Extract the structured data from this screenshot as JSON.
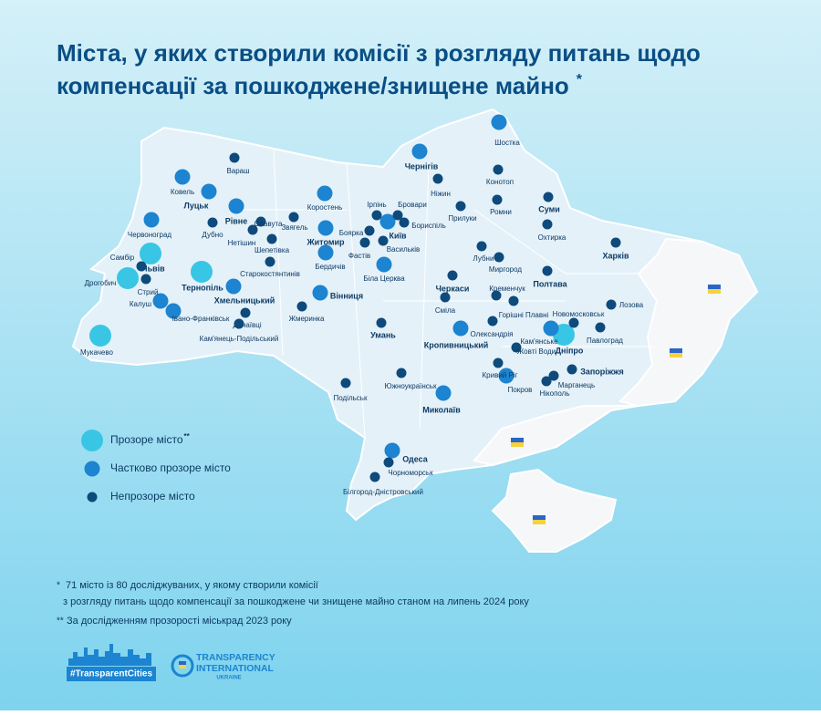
{
  "header": {
    "title_lines": [
      "Міста, у яких створили комісії з розгляду питань щодо",
      "компенсації за пошкоджене/знищене майно"
    ],
    "title_mark": "*"
  },
  "groups": [
    {
      "label": "Прозоре місто",
      "mark": "**",
      "color": "#38c6e4",
      "cities": [
        "Львів",
        "Дрогобич",
        "Тернопіль",
        "Мукачево",
        "Дніпро"
      ]
    },
    {
      "label": "Частково прозоре місто",
      "color": "#1c84d0",
      "cities": [
        "Ковель",
        "Луцьк",
        "Рівне",
        "Червоноград",
        "Калуш",
        "Івано-Франківськ",
        "Хмельницький",
        "Коростень",
        "Житомир",
        "Бердичів",
        "Вінниця",
        "Київ",
        "Біла Церква",
        "Чернігів",
        "Кропивницький",
        "Миколаїв",
        "Одеса",
        "Кам'янське",
        "Покров",
        "Шостка"
      ]
    },
    {
      "label": "Непрозоре місто",
      "color": "#0e4a7b",
      "cities": [
        "Вараш",
        "Дубно",
        "Нетішин",
        "Славута",
        "Шепетівка",
        "Звягель",
        "Старокостянтинів",
        "Самбір",
        "Стрий",
        "Дунаївці",
        "Кам'янець-Подільський",
        "Жмеринка",
        "Ірпінь",
        "Бровари",
        "Бориспіль",
        "Боярка",
        "Фастів",
        "Васильків",
        "Ніжин",
        "Прилуки",
        "Конотоп",
        "Ромни",
        "Суми",
        "Охтирка",
        "Харків",
        "Лубни",
        "Миргород",
        "Полтава",
        "Черкаси",
        "Сміла",
        "Кременчук",
        "Горішні Плавні",
        "Олександрія",
        "Умань",
        "Жовті Води",
        "Кривий Ріг",
        "Нікополь",
        "Марганець",
        "Запоріжжя",
        "Новомосковськ",
        "Павлоград",
        "Лозова",
        "Подільськ",
        "Южноукраїнськ",
        "Чорноморськ",
        "Білгород-Дністровський"
      ]
    }
  ],
  "footnotes": [
    {
      "mark": "*",
      "lines": [
        "71 місто із 80 досліджуваних, у якому створили комісії",
        "з розгляду питань щодо компенсації за пошкоджене чи знищене майно станом на липень 2024 року"
      ]
    },
    {
      "mark": "**",
      "lines": [
        "За дослідженням прозорості міськрад 2023 року"
      ]
    }
  ],
  "logos": {
    "hashtag": "#TransparentCities",
    "org_lines": [
      "TRANSPARENCY",
      "INTERNATIONAL",
      "UKRAINE"
    ]
  }
}
